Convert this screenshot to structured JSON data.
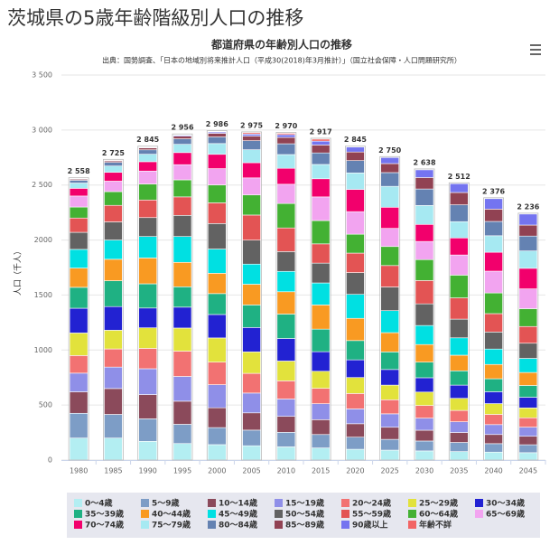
{
  "page_title": "茨城県の5歳年齢階級別人口の推移",
  "chart_data": {
    "type": "stacked_bar",
    "title": "都道府県の年齢別人口の推移",
    "subtitle": "出典：国勢調査、「日本の地域別将来推計人口（平成30(2018)年3月推計）」（国立社会保障・人口問題研究所）",
    "y_label": "人口（千人）",
    "categories": [
      "1980",
      "1985",
      "1990",
      "1995",
      "2000",
      "2005",
      "2010",
      "2015",
      "2020",
      "2025",
      "2030",
      "2035",
      "2040",
      "2045"
    ],
    "totals": [
      2558,
      2725,
      2845,
      2956,
      2986,
      2975,
      2970,
      2917,
      2845,
      2750,
      2638,
      2512,
      2376,
      2236
    ],
    "total_labels": [
      "2 558",
      "2 725",
      "2 845",
      "2 956",
      "2 986",
      "2 975",
      "2 970",
      "2 917",
      "2 845",
      "2 750",
      "2 638",
      "2 512",
      "2 376",
      "2 236"
    ],
    "ylim": [
      0,
      3500
    ],
    "yticks": [
      0,
      500,
      {
        "value": 1000,
        "label": "1000"
      },
      {
        "value": 1500,
        "label": "1500"
      },
      {
        "value": 2000,
        "label": "2000"
      },
      {
        "value": 2500,
        "label": "2 500"
      },
      {
        "value": 3000,
        "label": "3 000"
      },
      {
        "value": 3500,
        "label": "3 500"
      }
    ],
    "grid": true,
    "series": [
      {
        "name": "0～4歳",
        "color": "#b3eef2",
        "values": [
          200,
          200,
          170,
          150,
          140,
          130,
          120,
          110,
          98,
          90,
          83,
          77,
          72,
          67
        ]
      },
      {
        "name": "5～9歳",
        "color": "#7d9dc6",
        "values": [
          225,
          215,
          205,
          175,
          155,
          142,
          132,
          122,
          110,
          98,
          90,
          83,
          77,
          72
        ]
      },
      {
        "name": "10～14歳",
        "color": "#8b4a5b",
        "values": [
          195,
          235,
          220,
          210,
          180,
          157,
          145,
          135,
          122,
          110,
          98,
          90,
          83,
          77
        ]
      },
      {
        "name": "15～19歳",
        "color": "#8f8fe8",
        "values": [
          170,
          195,
          235,
          225,
          210,
          180,
          158,
          145,
          135,
          122,
          110,
          98,
          90,
          83
        ]
      },
      {
        "name": "20～24歳",
        "color": "#f27272",
        "values": [
          160,
          165,
          185,
          230,
          205,
          179,
          165,
          140,
          140,
          128,
          115,
          103,
          93,
          85
        ]
      },
      {
        "name": "25～29歳",
        "color": "#e2e23c",
        "values": [
          205,
          170,
          187,
          210,
          220,
          195,
          180,
          155,
          145,
          133,
          122,
          110,
          98,
          90
        ]
      },
      {
        "name": "30～34歳",
        "color": "#2222d2",
        "values": [
          225,
          215,
          180,
          190,
          213,
          222,
          205,
          178,
          161,
          142,
          130,
          120,
          108,
          97
        ]
      },
      {
        "name": "35～39歳",
        "color": "#1fb183",
        "values": [
          190,
          235,
          220,
          185,
          190,
          205,
          222,
          205,
          175,
          160,
          142,
          130,
          118,
          107
        ]
      },
      {
        "name": "40～44歳",
        "color": "#f99a22",
        "values": [
          175,
          195,
          235,
          222,
          185,
          188,
          203,
          220,
          202,
          175,
          160,
          142,
          130,
          118
        ]
      },
      {
        "name": "45～49歳",
        "color": "#00e0e2",
        "values": [
          170,
          175,
          195,
          235,
          220,
          183,
          185,
          200,
          218,
          200,
          173,
          158,
          140,
          128
        ]
      },
      {
        "name": "50～54歳",
        "color": "#626262",
        "values": [
          155,
          165,
          172,
          192,
          232,
          218,
          180,
          180,
          198,
          215,
          197,
          170,
          155,
          138
        ]
      },
      {
        "name": "55～59歳",
        "color": "#e35454",
        "values": [
          130,
          150,
          160,
          168,
          188,
          228,
          215,
          175,
          177,
          195,
          212,
          193,
          167,
          152
        ]
      },
      {
        "name": "60～64歳",
        "color": "#43b133",
        "values": [
          100,
          125,
          145,
          155,
          163,
          183,
          222,
          212,
          172,
          173,
          190,
          207,
          188,
          162
        ]
      },
      {
        "name": "65～69歳",
        "color": "#f2a4f0",
        "values": [
          100,
          95,
          118,
          138,
          148,
          155,
          175,
          215,
          205,
          165,
          165,
          183,
          198,
          180
        ]
      },
      {
        "name": "70～74歳",
        "color": "#f2006c",
        "values": [
          70,
          80,
          85,
          110,
          130,
          138,
          145,
          165,
          202,
          192,
          155,
          155,
          172,
          187
        ]
      },
      {
        "name": "75～79歳",
        "color": "#a6e9f2",
        "values": [
          48,
          58,
          68,
          75,
          98,
          118,
          125,
          130,
          150,
          190,
          172,
          148,
          150,
          158
        ]
      },
      {
        "name": "80～84歳",
        "color": "#6482b2",
        "values": [
          25,
          33,
          40,
          50,
          60,
          82,
          98,
          105,
          112,
          125,
          150,
          153,
          130,
          135
        ]
      },
      {
        "name": "85～89歳",
        "color": "#914253",
        "values": [
          10,
          13,
          18,
          24,
          33,
          42,
          58,
          72,
          78,
          82,
          104,
          112,
          112,
          100
        ]
      },
      {
        "name": "90歳以上",
        "color": "#7474f0",
        "values": [
          3,
          4,
          5,
          8,
          12,
          18,
          25,
          35,
          45,
          55,
          70,
          80,
          95,
          100
        ]
      },
      {
        "name": "年齢不詳",
        "color": "#f26464",
        "values": [
          2,
          2,
          2,
          4,
          4,
          12,
          12,
          18,
          0,
          0,
          0,
          0,
          0,
          0
        ]
      }
    ]
  }
}
